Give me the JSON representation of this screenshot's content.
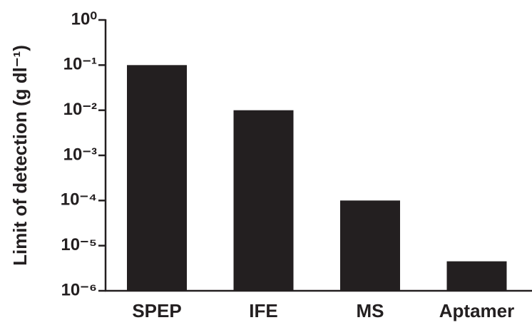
{
  "chart_data": {
    "type": "bar",
    "y_label": "Limit of detection (g dl⁻¹)",
    "categories": [
      "SPEP",
      "IFE",
      "MS",
      "Aptamer"
    ],
    "values": [
      0.1,
      0.01,
      0.0001,
      4.5e-06
    ],
    "color": "#231f20",
    "log_y": true,
    "ylim": [
      1e-06,
      1
    ],
    "yticks": [
      {
        "value": 1,
        "label": "10⁰"
      },
      {
        "value": 0.1,
        "label": "10⁻¹"
      },
      {
        "value": 0.01,
        "label": "10⁻²"
      },
      {
        "value": 0.001,
        "label": "10⁻³"
      },
      {
        "value": 0.0001,
        "label": "10⁻⁴"
      },
      {
        "value": 1e-05,
        "label": "10⁻⁵"
      },
      {
        "value": 1e-06,
        "label": "10⁻⁶"
      }
    ],
    "grid": false
  }
}
